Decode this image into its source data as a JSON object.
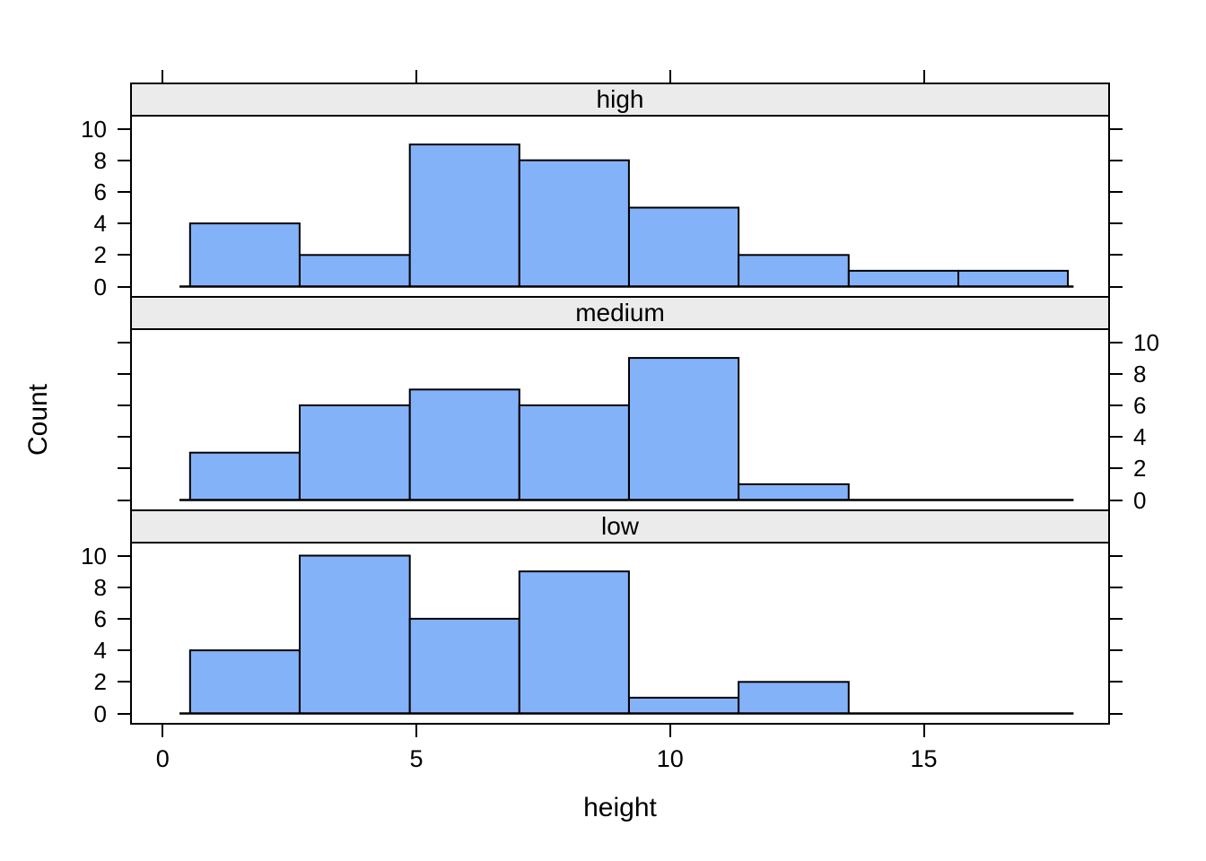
{
  "chart_data": {
    "type": "histogram",
    "title": "",
    "xlabel": "height",
    "ylabel": "Count",
    "layout": "3 stacked panels, shared x axis, strip label above each panel",
    "x_ticks": [
      0,
      5,
      10,
      15
    ],
    "y_ticks": [
      0,
      2,
      4,
      6,
      8,
      10
    ],
    "xlim": [
      -0.65,
      18.65
    ],
    "ylim": [
      -0.7,
      10.8
    ],
    "bin_edges": [
      0.54,
      2.7,
      4.87,
      7.03,
      9.19,
      11.35,
      13.52,
      15.68,
      17.84
    ],
    "panels": [
      {
        "label": "high",
        "counts": [
          4,
          2,
          9,
          8,
          5,
          2,
          1,
          1
        ],
        "count_labels_side": "left"
      },
      {
        "label": "medium",
        "counts": [
          3,
          6,
          7,
          6,
          9,
          1,
          0,
          0
        ],
        "count_labels_side": "right"
      },
      {
        "label": "low",
        "counts": [
          4,
          10,
          6,
          9,
          1,
          2,
          0,
          0
        ],
        "count_labels_side": "left"
      }
    ],
    "baseline_span": [
      0.33,
      17.95
    ],
    "colors": {
      "bar_fill": "#84B2F8",
      "bar_stroke": "#000000",
      "strip_bg": "#EBEBEB",
      "border": "#000000",
      "text": "#000000",
      "background": "#FFFFFF"
    },
    "grid": "off",
    "legend": "none"
  }
}
